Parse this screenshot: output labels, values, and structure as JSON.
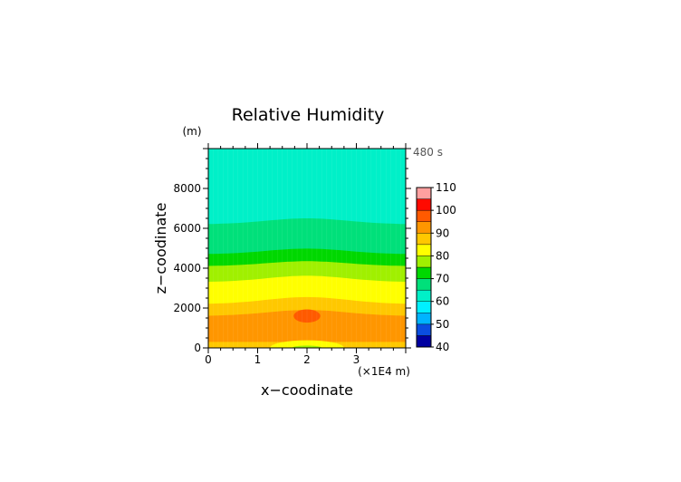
{
  "chart_data": {
    "type": "heatmap",
    "title": "Relative Humidity",
    "xlabel": "x−coodinate",
    "ylabel": "z−coodinate",
    "x_unit_label": "(×1E4 m)",
    "y_unit_label": "(m)",
    "time_label": "480 s",
    "xlim": [
      0,
      4
    ],
    "ylim": [
      0,
      10000
    ],
    "xticks": [
      0,
      1,
      2,
      3
    ],
    "yticks": [
      0,
      2000,
      4000,
      6000,
      8000
    ],
    "colorbar": {
      "levels": [
        40,
        45,
        50,
        55,
        60,
        65,
        70,
        75,
        80,
        85,
        90,
        95,
        100,
        105,
        110
      ],
      "tick_labels": [
        40,
        50,
        60,
        70,
        80,
        90,
        100,
        110
      ],
      "colors": [
        "#0000a0",
        "#0a4ee0",
        "#00b4ff",
        "#00f0ff",
        "#00f0c8",
        "#00e07a",
        "#00d800",
        "#a0f000",
        "#ffff00",
        "#ffc800",
        "#ff9600",
        "#ff5a00",
        "#ff0a00",
        "#ffa0a0"
      ]
    },
    "contour_bands": [
      {
        "range": [
          60,
          65
        ],
        "z_bottom": 6200,
        "z_top": 10000,
        "bulge": 300
      },
      {
        "range": [
          65,
          70
        ],
        "z_bottom": 4700,
        "z_top": 6200,
        "bulge": 300
      },
      {
        "range": [
          70,
          75
        ],
        "z_bottom": 4100,
        "z_top": 4700,
        "bulge": 280
      },
      {
        "range": [
          75,
          80
        ],
        "z_bottom": 3300,
        "z_top": 4100,
        "bulge": 250
      },
      {
        "range": [
          80,
          85
        ],
        "z_bottom": 2200,
        "z_top": 3300,
        "bulge": 320
      },
      {
        "range": [
          85,
          90
        ],
        "z_bottom": 1600,
        "z_top": 2200,
        "bulge": 350
      },
      {
        "range": [
          90,
          95
        ],
        "z_bottom": 300,
        "z_top": 1600,
        "bulge": 300
      },
      {
        "range": [
          85,
          90
        ],
        "z_bottom": 0,
        "z_top": 300,
        "bulge": 0
      }
    ],
    "local_features": [
      {
        "range": [
          95,
          100
        ],
        "x_center": 2.0,
        "z_center": 1600,
        "x_halfwidth": 0.27,
        "z_halfwidth": 330
      },
      {
        "range": [
          80,
          85
        ],
        "x_center": 2.0,
        "z_center": 0,
        "x_halfwidth": 0.75,
        "z_halfwidth": 380
      },
      {
        "range": [
          75,
          80
        ],
        "x_center": 2.0,
        "z_center": 0,
        "x_halfwidth": 0.3,
        "z_halfwidth": 120
      }
    ]
  }
}
